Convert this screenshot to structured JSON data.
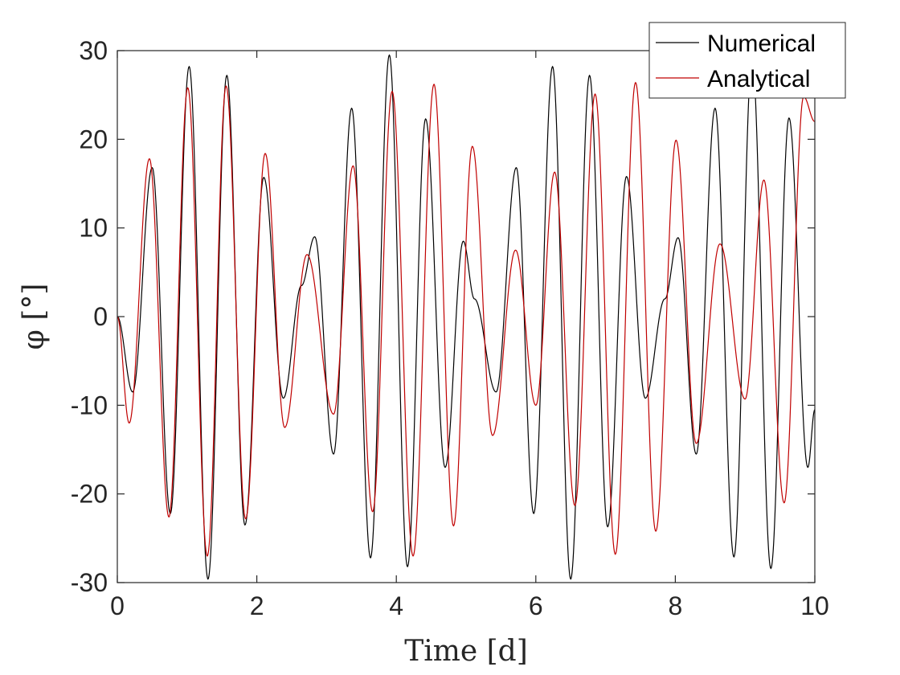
{
  "chart_data": {
    "type": "line",
    "title": "",
    "xlabel": "Time [d]",
    "ylabel": "φ [°]",
    "xlim": [
      0,
      10
    ],
    "ylim": [
      -30,
      30
    ],
    "xticks": [
      "0",
      "2",
      "4",
      "6",
      "8",
      "10"
    ],
    "yticks": [
      "-30",
      "-20",
      "-10",
      "0",
      "10",
      "20",
      "30"
    ],
    "grid": false,
    "legend_position": "top-right",
    "series": [
      {
        "name": "Numerical",
        "color": "#000000",
        "points": [
          [
            0,
            0
          ],
          [
            0.22,
            -8.5
          ],
          [
            0.5,
            16.8
          ],
          [
            0.76,
            -22.2
          ],
          [
            1.03,
            28.2
          ],
          [
            1.3,
            -29.6
          ],
          [
            1.57,
            27.2
          ],
          [
            1.83,
            -23.5
          ],
          [
            2.1,
            15.7
          ],
          [
            2.38,
            -9.2
          ],
          [
            2.64,
            3.5
          ],
          [
            2.83,
            9.0
          ],
          [
            3.1,
            -15.5
          ],
          [
            3.36,
            23.5
          ],
          [
            3.63,
            -27.2
          ],
          [
            3.9,
            29.5
          ],
          [
            4.16,
            -28.2
          ],
          [
            4.42,
            22.3
          ],
          [
            4.7,
            -17.0
          ],
          [
            4.96,
            8.5
          ],
          [
            5.12,
            2.0
          ],
          [
            5.43,
            -8.5
          ],
          [
            5.72,
            16.8
          ],
          [
            5.97,
            -22.2
          ],
          [
            6.24,
            28.2
          ],
          [
            6.5,
            -29.6
          ],
          [
            6.77,
            27.2
          ],
          [
            7.03,
            -23.7
          ],
          [
            7.3,
            15.8
          ],
          [
            7.57,
            -9.2
          ],
          [
            7.85,
            2.0
          ],
          [
            8.04,
            8.9
          ],
          [
            8.3,
            -15.5
          ],
          [
            8.57,
            23.5
          ],
          [
            8.84,
            -27.1
          ],
          [
            9.1,
            29.2
          ],
          [
            9.37,
            -28.4
          ],
          [
            9.63,
            22.4
          ],
          [
            9.9,
            -17.0
          ],
          [
            10.0,
            -10.5
          ]
        ]
      },
      {
        "name": "Analytical",
        "color": "#c00000",
        "points": [
          [
            0,
            0
          ],
          [
            0.17,
            -12.0
          ],
          [
            0.46,
            17.8
          ],
          [
            0.74,
            -22.6
          ],
          [
            1.01,
            25.8
          ],
          [
            1.29,
            -27.0
          ],
          [
            1.56,
            26.0
          ],
          [
            1.84,
            -22.8
          ],
          [
            2.12,
            18.4
          ],
          [
            2.4,
            -12.5
          ],
          [
            2.72,
            7.0
          ],
          [
            3.1,
            -11.0
          ],
          [
            3.38,
            17.0
          ],
          [
            3.66,
            -22.0
          ],
          [
            3.94,
            25.4
          ],
          [
            4.24,
            -27.0
          ],
          [
            4.54,
            26.2
          ],
          [
            4.82,
            -23.6
          ],
          [
            5.09,
            19.2
          ],
          [
            5.38,
            -13.4
          ],
          [
            5.71,
            7.5
          ],
          [
            6.0,
            -10.0
          ],
          [
            6.27,
            16.3
          ],
          [
            6.56,
            -21.3
          ],
          [
            6.85,
            25.1
          ],
          [
            7.14,
            -26.8
          ],
          [
            7.43,
            26.4
          ],
          [
            7.72,
            -24.2
          ],
          [
            8.01,
            19.9
          ],
          [
            8.3,
            -14.3
          ],
          [
            8.64,
            8.2
          ],
          [
            9.0,
            -9.3
          ],
          [
            9.27,
            15.4
          ],
          [
            9.56,
            -21.0
          ],
          [
            9.84,
            24.8
          ],
          [
            10.0,
            22.0
          ]
        ]
      }
    ]
  }
}
